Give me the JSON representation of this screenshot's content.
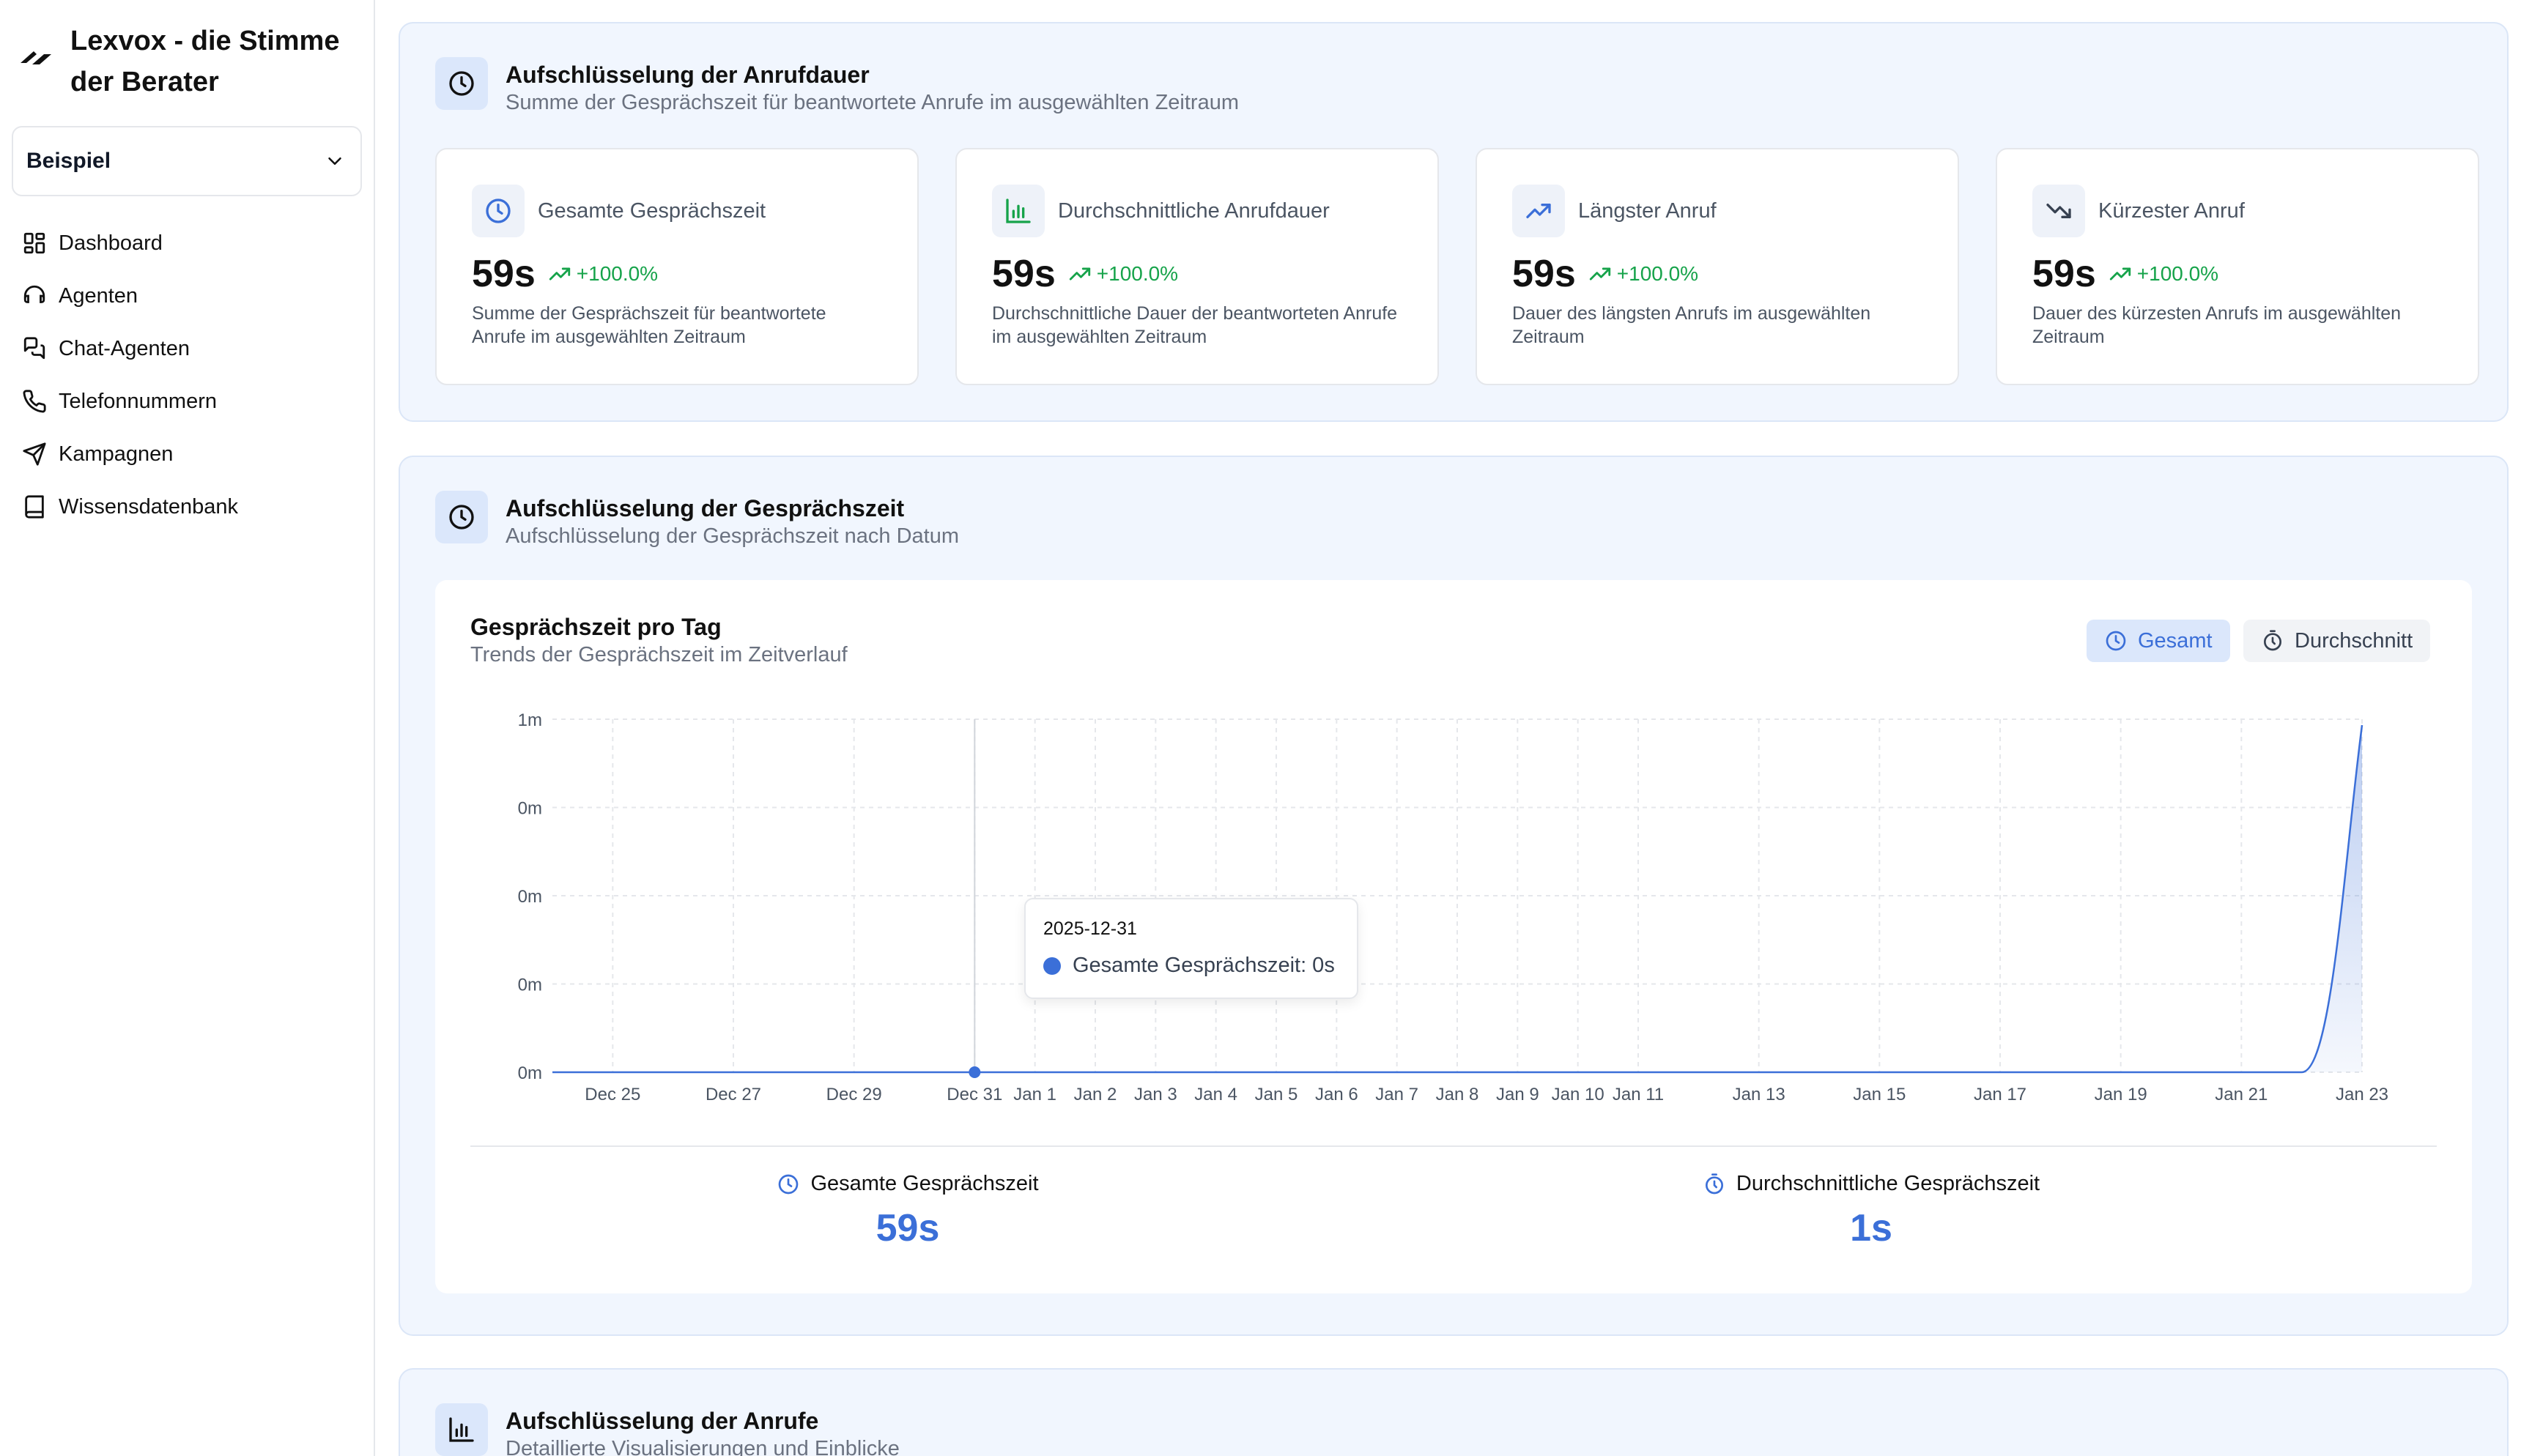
{
  "sidebar": {
    "brand": "Lexvox - die Stimme der Berater",
    "workspace": "Beispiel",
    "items": [
      {
        "label": "Dashboard",
        "icon": "grid-icon"
      },
      {
        "label": "Agenten",
        "icon": "headset-icon"
      },
      {
        "label": "Chat-Agenten",
        "icon": "chat-icon"
      },
      {
        "label": "Telefonnummern",
        "icon": "phone-icon"
      },
      {
        "label": "Kampagnen",
        "icon": "send-icon"
      },
      {
        "label": "Wissensdatenbank",
        "icon": "book-icon"
      }
    ]
  },
  "duration": {
    "title": "Aufschlüsselung der Anrufdauer",
    "subtitle": "Summe der Gesprächszeit für beantwortete Anrufe im ausgewählten Zeitraum",
    "cards": [
      {
        "label": "Gesamte Gesprächszeit",
        "value": "59s",
        "trend": "+100.0%",
        "desc": "Summe der Gesprächszeit für beantwortete Anrufe im ausgewählten Zeitraum",
        "icon": "clock-icon"
      },
      {
        "label": "Durchschnittliche Anrufdauer",
        "value": "59s",
        "trend": "+100.0%",
        "desc": "Durchschnittliche Dauer der beantworteten Anrufe im ausgewählten Zeitraum",
        "icon": "bar-chart-icon"
      },
      {
        "label": "Längster Anruf",
        "value": "59s",
        "trend": "+100.0%",
        "desc": "Dauer des längsten Anrufs im ausgewählten Zeitraum",
        "icon": "trend-up-icon"
      },
      {
        "label": "Kürzester Anruf",
        "value": "59s",
        "trend": "+100.0%",
        "desc": "Dauer des kürzesten Anrufs im ausgewählten Zeitraum",
        "icon": "trend-down-icon"
      }
    ]
  },
  "talktime": {
    "title": "Aufschlüsselung der Gesprächszeit",
    "subtitle": "Aufschlüsselung der Gesprächszeit nach Datum",
    "chart_title": "Gesprächszeit pro Tag",
    "chart_subtitle": "Trends der Gesprächszeit im Zeitverlauf",
    "toggle_total": "Gesamt",
    "toggle_avg": "Durchschnitt",
    "tooltip_date": "2025-12-31",
    "tooltip_text": "Gesamte Gesprächszeit: 0s",
    "stat_total_label": "Gesamte Gesprächszeit",
    "stat_total_value": "59s",
    "stat_avg_label": "Durchschnittliche Gesprächszeit",
    "stat_avg_value": "1s"
  },
  "calls": {
    "title": "Aufschlüsselung der Anrufe",
    "subtitle": "Detaillierte Visualisierungen und Einblicke"
  },
  "colors": {
    "accent": "#3b6fd8",
    "positive": "#16a34a",
    "section_bg": "#f1f6fe"
  },
  "chart_data": {
    "type": "area",
    "title": "Gesprächszeit pro Tag",
    "series": [
      {
        "name": "Gesamte Gesprächszeit",
        "unit": "s",
        "points": [
          {
            "date": "Dec 24",
            "value": 0
          },
          {
            "date": "Dec 25",
            "value": 0
          },
          {
            "date": "Dec 26",
            "value": 0
          },
          {
            "date": "Dec 27",
            "value": 0
          },
          {
            "date": "Dec 28",
            "value": 0
          },
          {
            "date": "Dec 29",
            "value": 0
          },
          {
            "date": "Dec 30",
            "value": 0
          },
          {
            "date": "Dec 31",
            "value": 0
          },
          {
            "date": "Jan 1",
            "value": 0
          },
          {
            "date": "Jan 2",
            "value": 0
          },
          {
            "date": "Jan 3",
            "value": 0
          },
          {
            "date": "Jan 4",
            "value": 0
          },
          {
            "date": "Jan 5",
            "value": 0
          },
          {
            "date": "Jan 6",
            "value": 0
          },
          {
            "date": "Jan 7",
            "value": 0
          },
          {
            "date": "Jan 8",
            "value": 0
          },
          {
            "date": "Jan 9",
            "value": 0
          },
          {
            "date": "Jan 10",
            "value": 0
          },
          {
            "date": "Jan 11",
            "value": 0
          },
          {
            "date": "Jan 12",
            "value": 0
          },
          {
            "date": "Jan 13",
            "value": 0
          },
          {
            "date": "Jan 14",
            "value": 0
          },
          {
            "date": "Jan 15",
            "value": 0
          },
          {
            "date": "Jan 16",
            "value": 0
          },
          {
            "date": "Jan 17",
            "value": 0
          },
          {
            "date": "Jan 18",
            "value": 0
          },
          {
            "date": "Jan 19",
            "value": 0
          },
          {
            "date": "Jan 20",
            "value": 0
          },
          {
            "date": "Jan 21",
            "value": 0
          },
          {
            "date": "Jan 22",
            "value": 0
          },
          {
            "date": "Jan 23",
            "value": 59
          }
        ]
      }
    ],
    "x_tick_labels": [
      "Dec 25",
      "Dec 27",
      "Dec 29",
      "Dec 31",
      "Jan 1",
      "Jan 2",
      "Jan 3",
      "Jan 4",
      "Jan 5",
      "Jan 6",
      "Jan 7",
      "Jan 8",
      "Jan 9",
      "Jan 10",
      "Jan 11",
      "Jan 13",
      "Jan 15",
      "Jan 17",
      "Jan 19",
      "Jan 21",
      "Jan 23"
    ],
    "y_tick_labels": [
      "0m",
      "0m",
      "0m",
      "0m",
      "1m"
    ],
    "ylim": [
      0,
      60
    ],
    "grid": true,
    "highlighted_point": {
      "date": "Dec 31",
      "value": 0
    }
  }
}
